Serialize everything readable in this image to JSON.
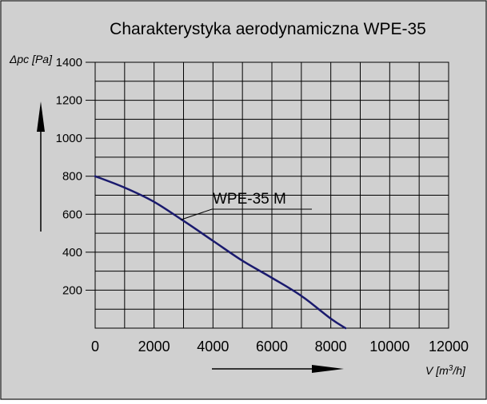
{
  "chart_data": {
    "type": "line",
    "title": "Charakterystyka aerodynamiczna  WPE-35",
    "ylabel": "Δpc [Pa]",
    "xlabel_prefix": "V [m",
    "xlabel_sup": "3",
    "xlabel_suffix": "/h]",
    "xlim": [
      0,
      12000
    ],
    "ylim": [
      0,
      1400
    ],
    "x_ticks": [
      0,
      2000,
      4000,
      6000,
      8000,
      10000,
      12000
    ],
    "y_ticks": [
      200,
      400,
      600,
      800,
      1000,
      1200,
      1400
    ],
    "grid": true,
    "colors": {
      "background": "#d0d0d0",
      "grid": "#000000",
      "series": "#1a1a6e"
    },
    "series": [
      {
        "name": "WPE-35 M",
        "x": [
          0,
          1000,
          2000,
          3000,
          4000,
          5000,
          6000,
          7000,
          8000,
          8500
        ],
        "y": [
          800,
          740,
          665,
          565,
          460,
          355,
          265,
          170,
          50,
          0
        ]
      }
    ]
  }
}
